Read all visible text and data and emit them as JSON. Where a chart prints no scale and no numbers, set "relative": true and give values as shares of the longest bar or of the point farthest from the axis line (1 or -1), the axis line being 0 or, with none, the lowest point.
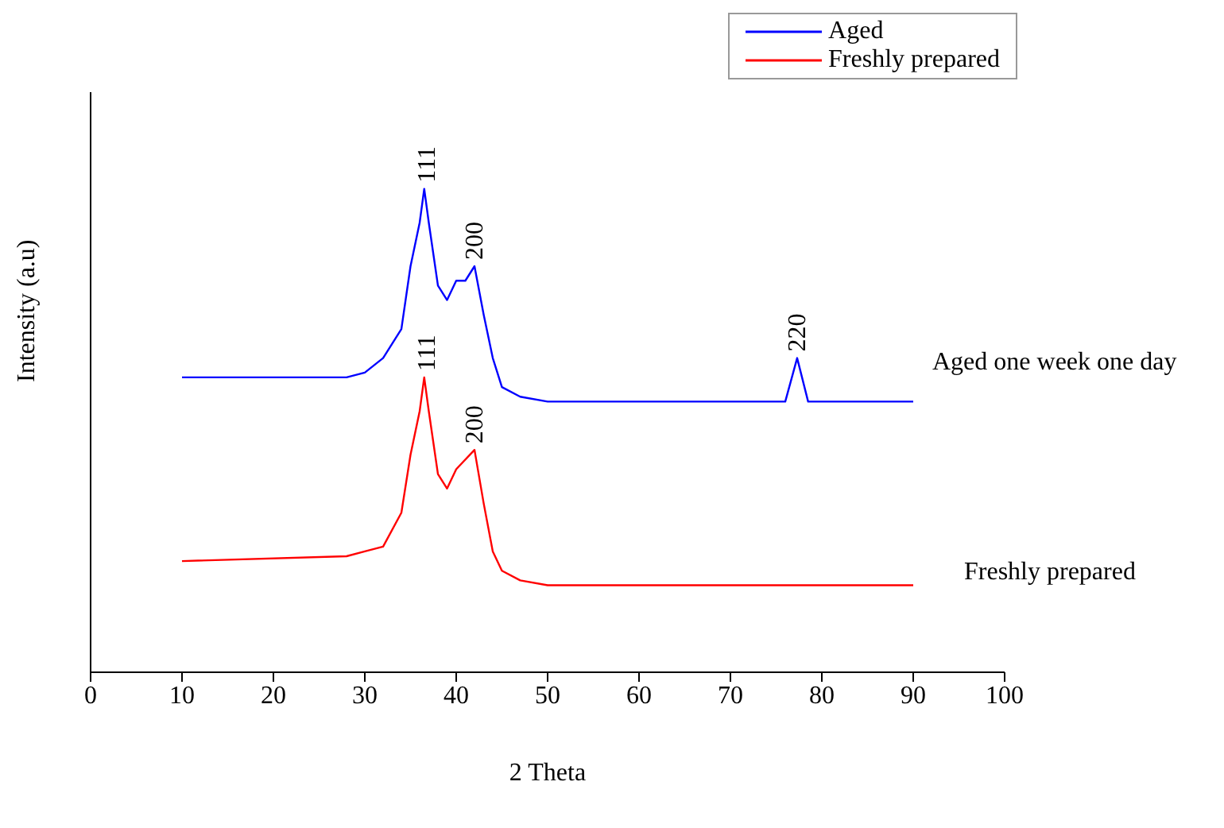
{
  "chart_data": {
    "type": "line",
    "relative": true,
    "xlabel": "2 Theta",
    "ylabel": "Intensity (a.u)",
    "xlim": [
      0,
      100
    ],
    "xticks": [
      0,
      10,
      20,
      30,
      40,
      50,
      60,
      70,
      80,
      90,
      100
    ],
    "legend": "top right",
    "grid": false,
    "marker": "none",
    "line_style": "solid",
    "series": [
      {
        "name": "Aged",
        "color": "#0000ff",
        "x": [
          10,
          20,
          28,
          30,
          32,
          34,
          35,
          36,
          36.5,
          37,
          38,
          39,
          40,
          41,
          42,
          43,
          44,
          45,
          47,
          50,
          60,
          70,
          76,
          77.3,
          78.5,
          90
        ],
        "values": [
          0.61,
          0.61,
          0.61,
          0.62,
          0.65,
          0.71,
          0.84,
          0.93,
          1.0,
          0.93,
          0.8,
          0.77,
          0.81,
          0.81,
          0.84,
          0.74,
          0.65,
          0.59,
          0.57,
          0.56,
          0.56,
          0.56,
          0.56,
          0.65,
          0.56,
          0.56
        ]
      },
      {
        "name": "Freshly prepared",
        "color": "#ff0000",
        "x": [
          10,
          28,
          30,
          32,
          34,
          35,
          36,
          36.5,
          37,
          38,
          39,
          40,
          42,
          43,
          44,
          45,
          47,
          50,
          60,
          70,
          80,
          90
        ],
        "values": [
          0.23,
          0.24,
          0.25,
          0.26,
          0.33,
          0.45,
          0.54,
          0.61,
          0.54,
          0.41,
          0.38,
          0.42,
          0.46,
          0.35,
          0.25,
          0.21,
          0.19,
          0.18,
          0.18,
          0.18,
          0.18,
          0.18
        ]
      }
    ],
    "annotations": [
      {
        "text": "111",
        "x": 36.8,
        "y": 1.0
      },
      {
        "text": "200",
        "x": 42,
        "y": 0.84
      },
      {
        "text": "220",
        "x": 77.3,
        "y": 0.65
      },
      {
        "text": "111",
        "x": 36.8,
        "y": 0.61
      },
      {
        "text": "200",
        "x": 42,
        "y": 0.46
      },
      "Aged one week one day",
      "Freshly prepared"
    ]
  }
}
